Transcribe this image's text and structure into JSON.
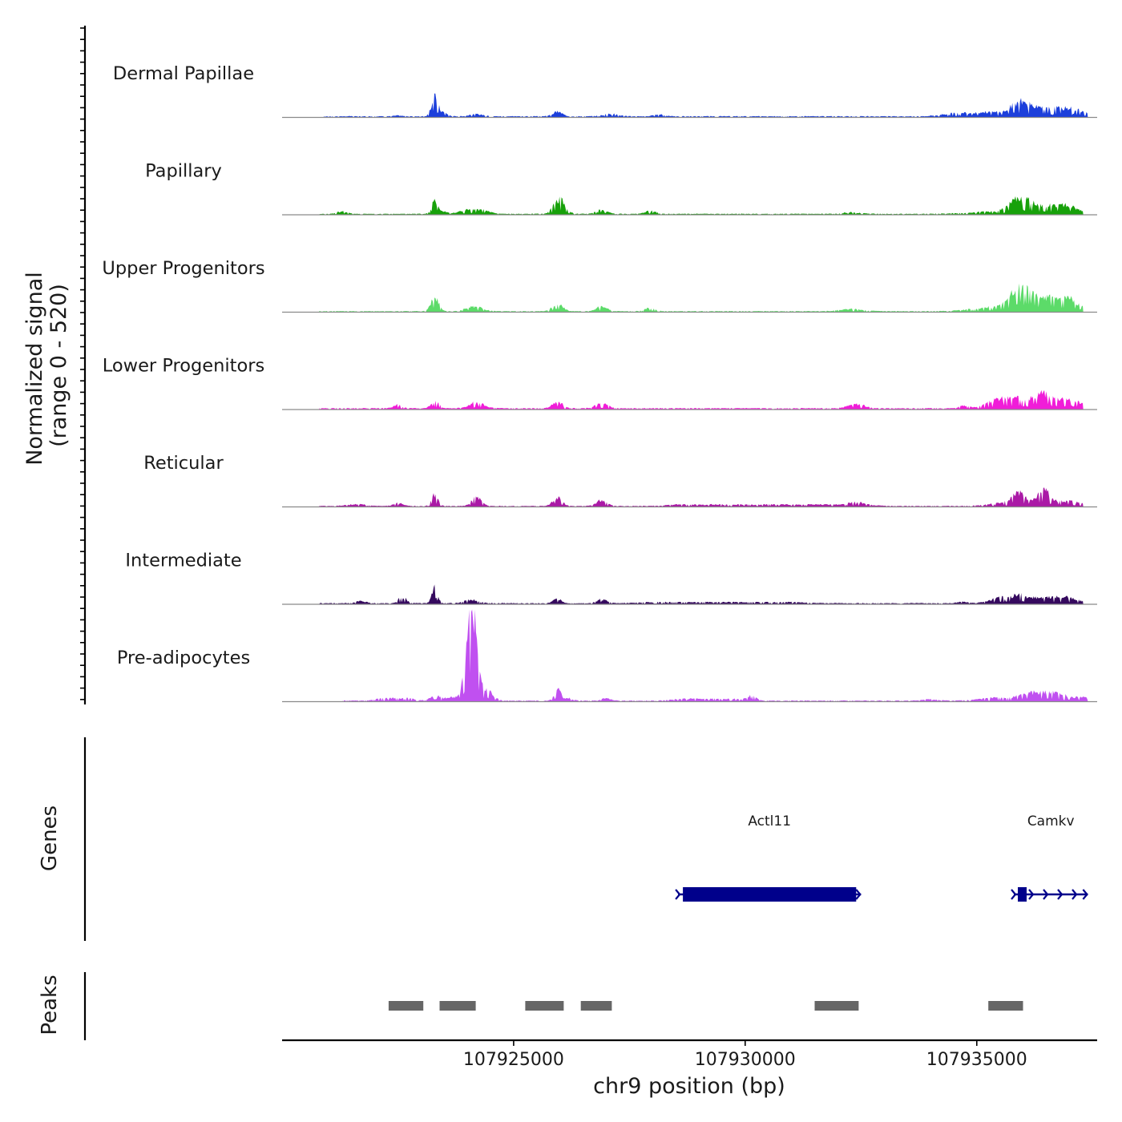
{
  "chart_data": {
    "type": "area",
    "title": "",
    "chromosome": "chr9",
    "x_range": [
      107920000,
      107937600
    ],
    "xlabel": "chr9 position (bp)",
    "x_ticks": [
      107925000,
      107930000,
      107935000
    ],
    "x_tick_labels": [
      "107925000",
      "107930000",
      "107935000"
    ],
    "ylabel_line1": "Normalized signal",
    "ylabel_line2": "(range 0 - 520)",
    "y_range": [
      0,
      520
    ],
    "tracks": [
      {
        "name": "Dermal Papillae",
        "color": "#1c3fdb",
        "noise": 14,
        "x_start": 107920900,
        "x_end": 107937400,
        "peaks": [
          [
            107920900,
            107937400,
            6,
            1100
          ],
          [
            107922500,
            107922500,
            4,
            90
          ],
          [
            107923300,
            107923300,
            112,
            70
          ],
          [
            107923500,
            107923500,
            22,
            70
          ],
          [
            107924200,
            107924200,
            12,
            150
          ],
          [
            107925950,
            107925950,
            26,
            100
          ],
          [
            107927100,
            107927100,
            14,
            160
          ],
          [
            107928150,
            107928150,
            10,
            120
          ],
          [
            107934450,
            107935200,
            14,
            250
          ],
          [
            107935900,
            107935900,
            64,
            170
          ],
          [
            107936230,
            107937050,
            34,
            180
          ],
          [
            107935650,
            107937200,
            14,
            600
          ]
        ]
      },
      {
        "name": "Papillary",
        "color": "#17a10a",
        "noise": 14,
        "x_start": 107920800,
        "x_end": 107937300,
        "peaks": [
          [
            107920800,
            107937300,
            5,
            1100
          ],
          [
            107921300,
            107921300,
            15,
            100
          ],
          [
            107923300,
            107923300,
            80,
            70
          ],
          [
            107923500,
            107923500,
            15,
            80
          ],
          [
            107924000,
            107924300,
            24,
            160
          ],
          [
            107925950,
            107925950,
            76,
            100
          ],
          [
            107926100,
            107926100,
            32,
            90
          ],
          [
            107926900,
            107926900,
            28,
            110
          ],
          [
            107927950,
            107927950,
            18,
            110
          ],
          [
            107932300,
            107932300,
            8,
            200
          ],
          [
            107935900,
            107935900,
            70,
            190
          ],
          [
            107936230,
            107936950,
            36,
            170
          ],
          [
            107935550,
            107937100,
            14,
            600
          ]
        ]
      },
      {
        "name": "Upper Progenitors",
        "color": "#5cdb69",
        "noise": 13,
        "x_start": 107920800,
        "x_end": 107937300,
        "peaks": [
          [
            107920800,
            107937300,
            5,
            1100
          ],
          [
            107923300,
            107923300,
            82,
            80
          ],
          [
            107924150,
            107924150,
            26,
            170
          ],
          [
            107925950,
            107925950,
            42,
            110
          ],
          [
            107926900,
            107926900,
            30,
            110
          ],
          [
            107927950,
            107927950,
            20,
            110
          ],
          [
            107932300,
            107932300,
            12,
            250
          ],
          [
            107935900,
            107935900,
            108,
            180
          ],
          [
            107936230,
            107936950,
            52,
            170
          ],
          [
            107935500,
            107937100,
            26,
            500
          ]
        ]
      },
      {
        "name": "Lower Progenitors",
        "color": "#f01dd8",
        "noise": 13,
        "x_start": 107920800,
        "x_end": 107937300,
        "peaks": [
          [
            107920800,
            107937300,
            7,
            1100
          ],
          [
            107922500,
            107922500,
            20,
            90
          ],
          [
            107923300,
            107923300,
            46,
            80
          ],
          [
            107924200,
            107924200,
            36,
            150
          ],
          [
            107925950,
            107925950,
            38,
            100
          ],
          [
            107926900,
            107926900,
            28,
            130
          ],
          [
            107932400,
            107932400,
            24,
            170
          ],
          [
            107934700,
            107934700,
            12,
            100
          ],
          [
            107935600,
            107936900,
            58,
            320
          ],
          [
            107936400,
            107936400,
            32,
            120
          ]
        ]
      },
      {
        "name": "Reticular",
        "color": "#aa1aa6",
        "noise": 13,
        "x_start": 107920800,
        "x_end": 107937300,
        "peaks": [
          [
            107920800,
            107937300,
            5,
            1100
          ],
          [
            107921600,
            107921600,
            10,
            200
          ],
          [
            107922500,
            107922500,
            18,
            90
          ],
          [
            107923300,
            107923300,
            70,
            70
          ],
          [
            107924200,
            107924200,
            52,
            100
          ],
          [
            107925950,
            107925950,
            48,
            100
          ],
          [
            107926900,
            107926900,
            34,
            110
          ],
          [
            107928600,
            107932400,
            8,
            300
          ],
          [
            107932400,
            107932400,
            14,
            150
          ],
          [
            107935600,
            107935600,
            18,
            300
          ],
          [
            107935900,
            107935900,
            58,
            130
          ],
          [
            107936450,
            107936450,
            72,
            100
          ],
          [
            107936300,
            107936950,
            28,
            280
          ]
        ]
      },
      {
        "name": "Intermediate",
        "color": "#35095e",
        "noise": 12,
        "x_start": 107920800,
        "x_end": 107937300,
        "peaks": [
          [
            107920800,
            107937300,
            6,
            1100
          ],
          [
            107921700,
            107921700,
            14,
            100
          ],
          [
            107922600,
            107922600,
            38,
            80
          ],
          [
            107923300,
            107923300,
            96,
            60
          ],
          [
            107924100,
            107924100,
            20,
            150
          ],
          [
            107925950,
            107925950,
            24,
            90
          ],
          [
            107926900,
            107926900,
            22,
            110
          ],
          [
            107928000,
            107931000,
            6,
            300
          ],
          [
            107934700,
            107934700,
            8,
            100
          ],
          [
            107935600,
            107936900,
            34,
            260
          ],
          [
            107935900,
            107935900,
            20,
            80
          ]
        ]
      },
      {
        "name": "Pre-adipocytes",
        "color": "#c050f0",
        "noise": 20,
        "x_start": 107921300,
        "x_end": 107937400,
        "peaks": [
          [
            107921300,
            107937400,
            5,
            1100
          ],
          [
            107922200,
            107922700,
            14,
            160
          ],
          [
            107923300,
            107923300,
            36,
            90
          ],
          [
            107923600,
            107923800,
            18,
            110
          ],
          [
            107924150,
            107924150,
            376,
            90
          ],
          [
            107924020,
            107924020,
            250,
            90
          ],
          [
            107924450,
            107924450,
            60,
            110
          ],
          [
            107925950,
            107925950,
            64,
            70
          ],
          [
            107926200,
            107926200,
            14,
            90
          ],
          [
            107927000,
            107927000,
            14,
            100
          ],
          [
            107928600,
            107929800,
            10,
            200
          ],
          [
            107930150,
            107930150,
            32,
            90
          ],
          [
            107934000,
            107934000,
            8,
            150
          ],
          [
            107935500,
            107937300,
            18,
            380
          ],
          [
            107936250,
            107936600,
            30,
            230
          ]
        ]
      }
    ],
    "genes": [
      {
        "name": "Actl11",
        "start": 107928550,
        "end": 107932500,
        "strand": "+",
        "color": "#00008b"
      },
      {
        "name": "Camkv",
        "start": 107935800,
        "end": 107937400,
        "strand": "+",
        "color": "#00008b"
      }
    ],
    "gene_track_label": "Genes",
    "peaks": {
      "label": "Peaks",
      "color": "#666666",
      "regions": [
        [
          107922300,
          107923050
        ],
        [
          107923400,
          107924180
        ],
        [
          107925250,
          107926080
        ],
        [
          107926450,
          107927120
        ],
        [
          107931500,
          107932450
        ],
        [
          107935250,
          107936000
        ]
      ]
    }
  }
}
